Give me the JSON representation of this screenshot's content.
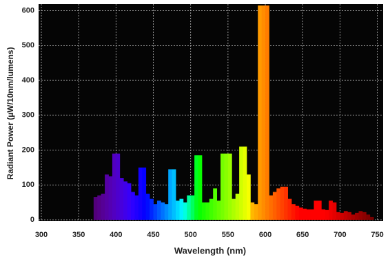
{
  "chart_data": {
    "type": "histogram",
    "xlabel": "Wavelength (nm)",
    "ylabel": "Radiant Power (µW/10nm/lumens)",
    "bins": [
      370,
      375,
      380,
      385,
      390,
      395,
      400,
      405,
      410,
      415,
      420,
      425,
      430,
      435,
      440,
      445,
      450,
      455,
      460,
      465,
      470,
      475,
      480,
      485,
      490,
      495,
      500,
      505,
      510,
      515,
      520,
      525,
      530,
      535,
      540,
      545,
      550,
      555,
      560,
      565,
      570,
      575,
      580,
      585,
      590,
      595,
      600,
      605,
      610,
      615,
      620,
      625,
      630,
      635,
      640,
      645,
      650,
      655,
      660,
      665,
      670,
      675,
      680,
      685,
      690,
      695,
      700,
      705,
      710,
      715,
      720,
      725,
      730,
      735,
      740,
      745
    ],
    "values": [
      65,
      70,
      75,
      130,
      125,
      190,
      190,
      120,
      110,
      105,
      80,
      70,
      150,
      150,
      75,
      60,
      45,
      55,
      50,
      45,
      145,
      145,
      55,
      60,
      50,
      70,
      70,
      185,
      185,
      50,
      50,
      60,
      90,
      55,
      190,
      190,
      190,
      60,
      75,
      210,
      210,
      130,
      50,
      45,
      615,
      615,
      615,
      70,
      80,
      90,
      95,
      95,
      60,
      45,
      40,
      35,
      32,
      30,
      30,
      55,
      55,
      30,
      28,
      55,
      50,
      22,
      20,
      25,
      22,
      15,
      20,
      25,
      22,
      15,
      8
    ],
    "colormap": "spectrum",
    "xlim": [
      300,
      755
    ],
    "xticks": [
      300,
      350,
      400,
      450,
      500,
      550,
      600,
      650,
      700,
      750
    ],
    "ylim": [
      0,
      615
    ],
    "yticks": [
      0,
      100,
      200,
      300,
      400,
      500,
      600
    ],
    "grid": true
  }
}
